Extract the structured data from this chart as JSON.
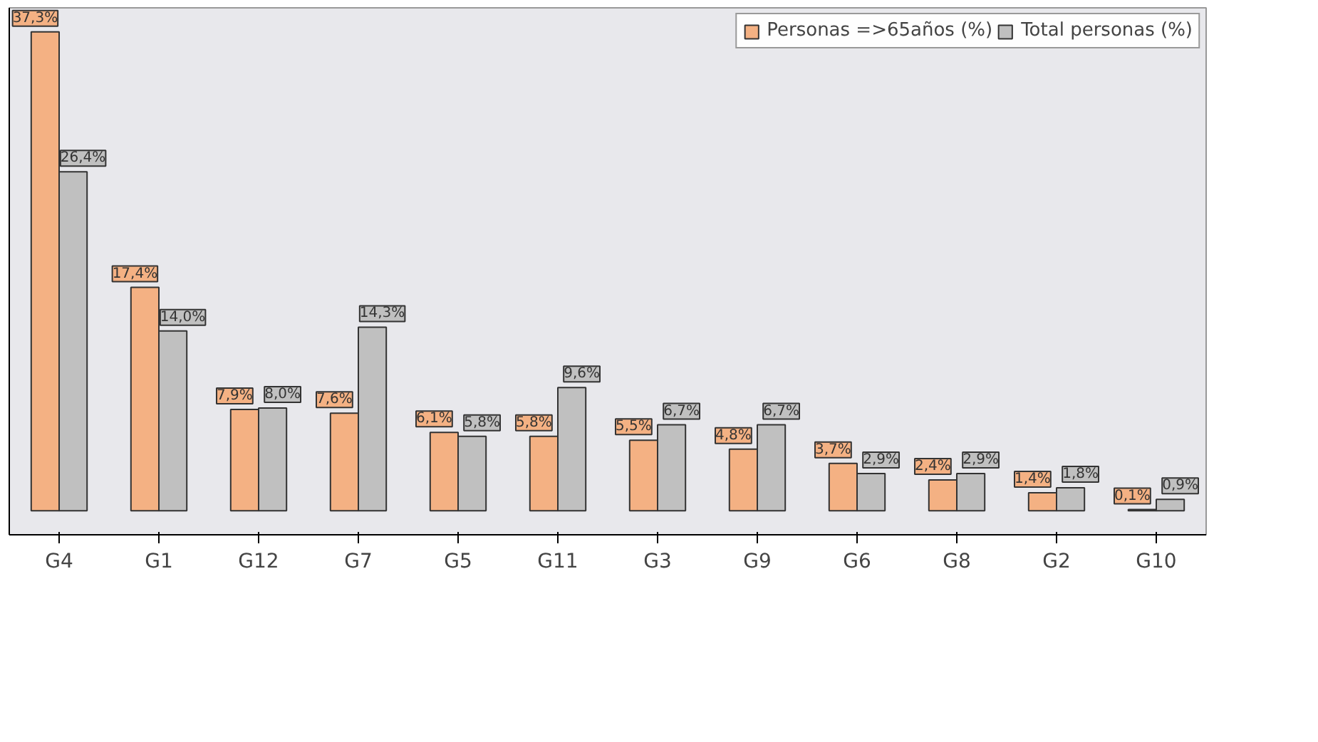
{
  "chart_data": {
    "type": "bar",
    "categories": [
      "G4",
      "G1",
      "G12",
      "G7",
      "G5",
      "G11",
      "G3",
      "G9",
      "G6",
      "G8",
      "G2",
      "G10"
    ],
    "series": [
      {
        "name": "Personas =>65años (%)",
        "color": "#f4b183",
        "values": [
          37.3,
          17.4,
          7.9,
          7.6,
          6.1,
          5.8,
          5.5,
          4.8,
          3.7,
          2.4,
          1.4,
          0.1
        ],
        "value_labels": [
          "37,3%",
          "17,4%",
          "7,9%",
          "7,6%",
          "6,1%",
          "5,8%",
          "5,5%",
          "4,8%",
          "3,7%",
          "2,4%",
          "1,4%",
          "0,1%"
        ]
      },
      {
        "name": "Total personas (%)",
        "color": "#c0c0c0",
        "values": [
          26.4,
          14.0,
          8.0,
          14.3,
          5.8,
          9.6,
          6.7,
          6.7,
          2.9,
          2.9,
          1.8,
          0.9
        ],
        "value_labels": [
          "26,4%",
          "14,0%",
          "8,0%",
          "14,3%",
          "5,8%",
          "9,6%",
          "6,7%",
          "6,7%",
          "2,9%",
          "2,9%",
          "1,8%",
          "0,9%"
        ]
      }
    ],
    "tick_labels": "x",
    "legend": "top right"
  }
}
